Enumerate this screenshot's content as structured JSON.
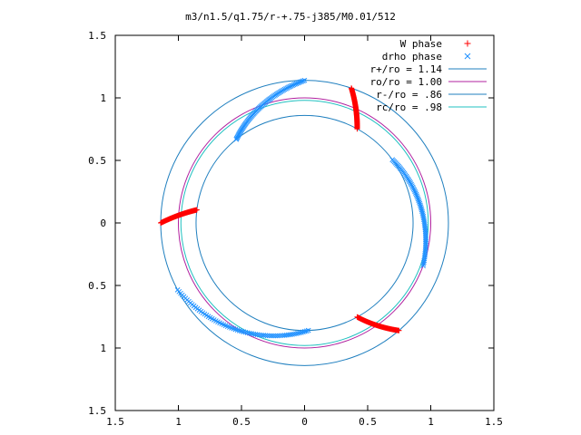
{
  "chart_data": {
    "type": "scatter",
    "title": "m3/n1.5/q1.75/r-+.75-j385/M0.01/512",
    "xlabel": "",
    "ylabel": "",
    "xlim": [
      -1.5,
      1.5
    ],
    "ylim": [
      -1.5,
      1.5
    ],
    "x_ticks": [
      -1.5,
      -1,
      -0.5,
      0,
      0.5,
      1,
      1.5
    ],
    "y_ticks": [
      -1.5,
      -1,
      -0.5,
      0,
      0.5,
      1,
      1.5
    ],
    "x_tick_labels": [
      "1.5",
      "1",
      "0.5",
      "0",
      "0.5",
      "1",
      "1.5"
    ],
    "y_tick_labels": [
      "1.5",
      "1",
      "0.5",
      "0",
      "0.5",
      "1",
      "1.5"
    ],
    "grid": false,
    "legend_position": "top-right",
    "circles": [
      {
        "name": "r+/ro = 1.14",
        "radius": 1.14,
        "color": "#1f7fbf"
      },
      {
        "name": "ro/ro = 1.00",
        "radius": 1.0,
        "color": "#b0209f"
      },
      {
        "name": "r-/ro = .86",
        "radius": 0.86,
        "color": "#1f7fbf"
      },
      {
        "name": "rc/ro = .98",
        "radius": 0.98,
        "color": "#20c0c0"
      }
    ],
    "arcs": [
      {
        "series": "W phase",
        "marker": "+",
        "color": "#ff0000",
        "r1": 1.14,
        "r2": 0.86,
        "theta1": 180,
        "theta2": 173
      },
      {
        "series": "W phase",
        "marker": "+",
        "color": "#ff0000",
        "r1": 1.14,
        "r2": 0.86,
        "theta1": 71,
        "theta2": 61
      },
      {
        "series": "W phase",
        "marker": "+",
        "color": "#ff0000",
        "r1": 0.86,
        "r2": 1.14,
        "theta1": -61,
        "theta2": -49
      },
      {
        "series": "drho phase",
        "marker": "x",
        "color": "#1e90ff",
        "r1": 1.14,
        "r2": 0.86,
        "theta1": 90,
        "theta2": 129
      },
      {
        "series": "drho phase",
        "marker": "x",
        "color": "#1e90ff",
        "r1": 0.86,
        "r2": 1.0,
        "theta1": 36,
        "theta2": -20
      },
      {
        "series": "drho phase",
        "marker": "x",
        "color": "#1e90ff",
        "r1": 1.14,
        "r2": 0.86,
        "theta1": 208,
        "theta2": 272
      }
    ]
  },
  "legend": {
    "w_phase": "W phase",
    "drho_phase": "drho phase",
    "r_plus": "r+/ro = 1.14",
    "r_o": "ro/ro = 1.00",
    "r_minus": "r-/ro = .86",
    "r_c": "rc/ro = .98"
  },
  "colors": {
    "w_phase": "#ff0000",
    "drho_phase": "#1e90ff",
    "r_plus": "#1f7fbf",
    "r_o": "#b0209f",
    "r_minus": "#1f7fbf",
    "r_c": "#20c0c0"
  }
}
